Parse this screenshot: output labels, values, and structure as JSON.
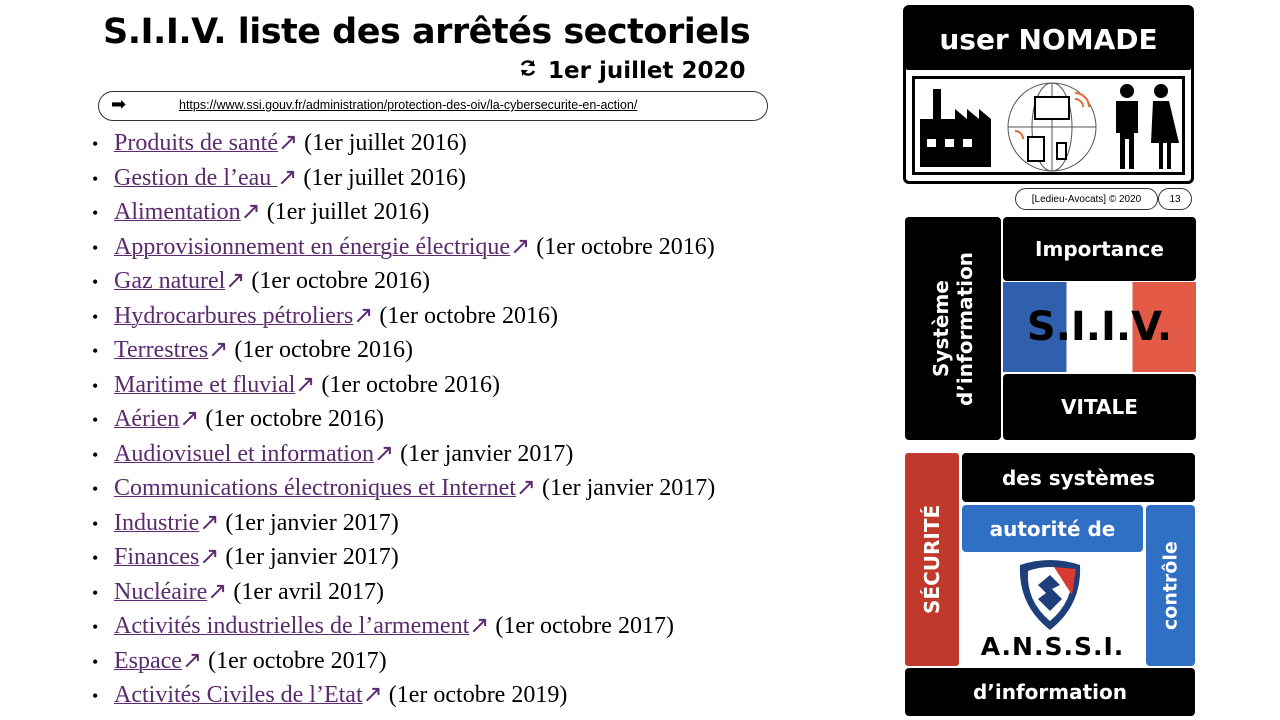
{
  "header": {
    "title": "S.I.I.V. liste des arrêtés sectoriels",
    "date": "1er juillet 2020",
    "url_arrow": "➡",
    "url": "https://www.ssi.gouv.fr/administration/protection-des-oiv/la-cybersecurite-en-action/"
  },
  "list": {
    "bullet": "•",
    "link_icon": "↗",
    "items": [
      {
        "link": "Produits de santé",
        "date": "(1er juillet 2016)"
      },
      {
        "link": "Gestion de l’eau ",
        "date": "(1er juillet 2016)"
      },
      {
        "link": "Alimentation",
        "date": "(1er juillet 2016)"
      },
      {
        "link": "Approvisionnement en énergie électrique",
        "date": "(1er octobre 2016)"
      },
      {
        "link": "Gaz naturel",
        "date": "(1er octobre 2016)"
      },
      {
        "link": "Hydrocarbures pétroliers",
        "date": "(1er octobre 2016)"
      },
      {
        "link": "Terrestres",
        "date": "(1er octobre 2016)"
      },
      {
        "link": "Maritime et fluvial",
        "date": "(1er octobre 2016)"
      },
      {
        "link": "Aérien",
        "date": "(1er octobre 2016)"
      },
      {
        "link": "Audiovisuel et information",
        "date": "(1er janvier 2017)"
      },
      {
        "link": "Communications électroniques et Internet",
        "date": "(1er janvier 2017)"
      },
      {
        "link": "Industrie",
        "date": "(1er janvier 2017)"
      },
      {
        "link": "Finances",
        "date": "(1er janvier 2017)"
      },
      {
        "link": "Nucléaire",
        "date": "(1er avril 2017)"
      },
      {
        "link": "Activités industrielles de l’armement",
        "date": "(1er octobre 2017)"
      },
      {
        "link": "Espace",
        "date": "(1er octobre 2017)"
      },
      {
        "link": "Activités Civiles de l’Etat",
        "date": "(1er octobre 2019)"
      }
    ]
  },
  "sidebar": {
    "nomade": "user NOMADE",
    "copyright": "[Ledieu-Avocats] © 2020",
    "page": "13",
    "siiv": {
      "side": "Système d’information",
      "top": "Importance",
      "center": "S.I.I.V.",
      "bottom": "VITALE"
    },
    "anssi": {
      "side": "SÉCURITÉ",
      "top": "des systèmes",
      "middle": "autorité de",
      "right": "contrôle",
      "name": "A.N.S.S.I.",
      "bottom": "d’information"
    }
  }
}
